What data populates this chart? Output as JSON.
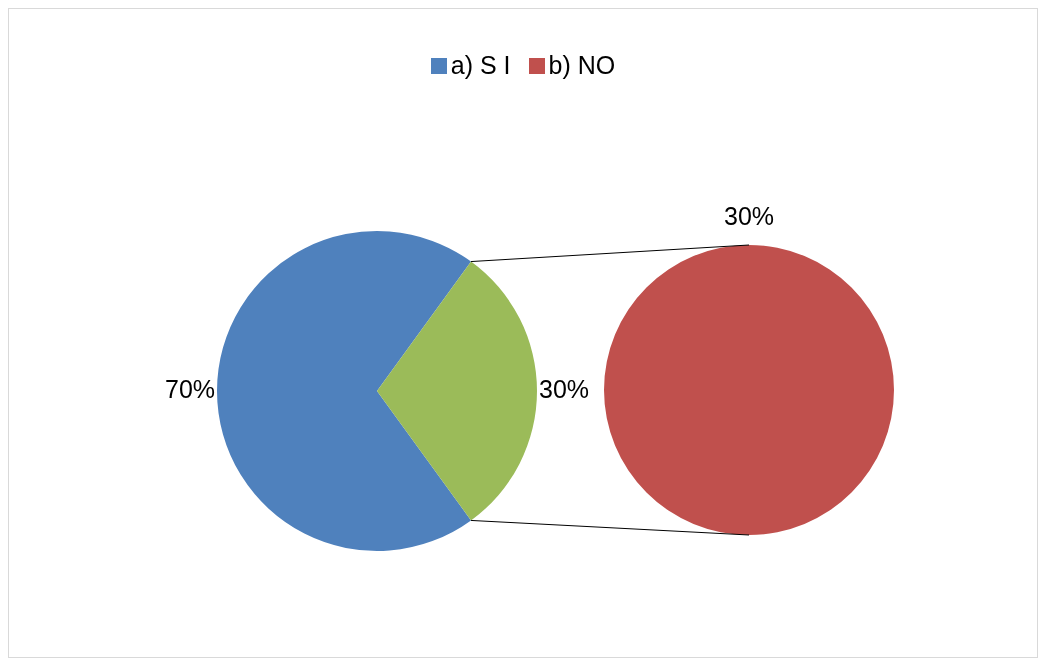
{
  "chart_data": [
    {
      "type": "pie",
      "categories": [
        "a) S I",
        null
      ],
      "values": [
        70,
        30
      ],
      "colors": [
        "#4f81bd",
        "#9bbb59"
      ],
      "value_labels": [
        "70%",
        "30%"
      ],
      "legend": "top"
    },
    {
      "type": "pie",
      "categories": [
        "b) NO"
      ],
      "values": [
        30
      ],
      "colors": [
        "#c0504d"
      ],
      "value_labels": [
        "30%"
      ]
    }
  ]
}
